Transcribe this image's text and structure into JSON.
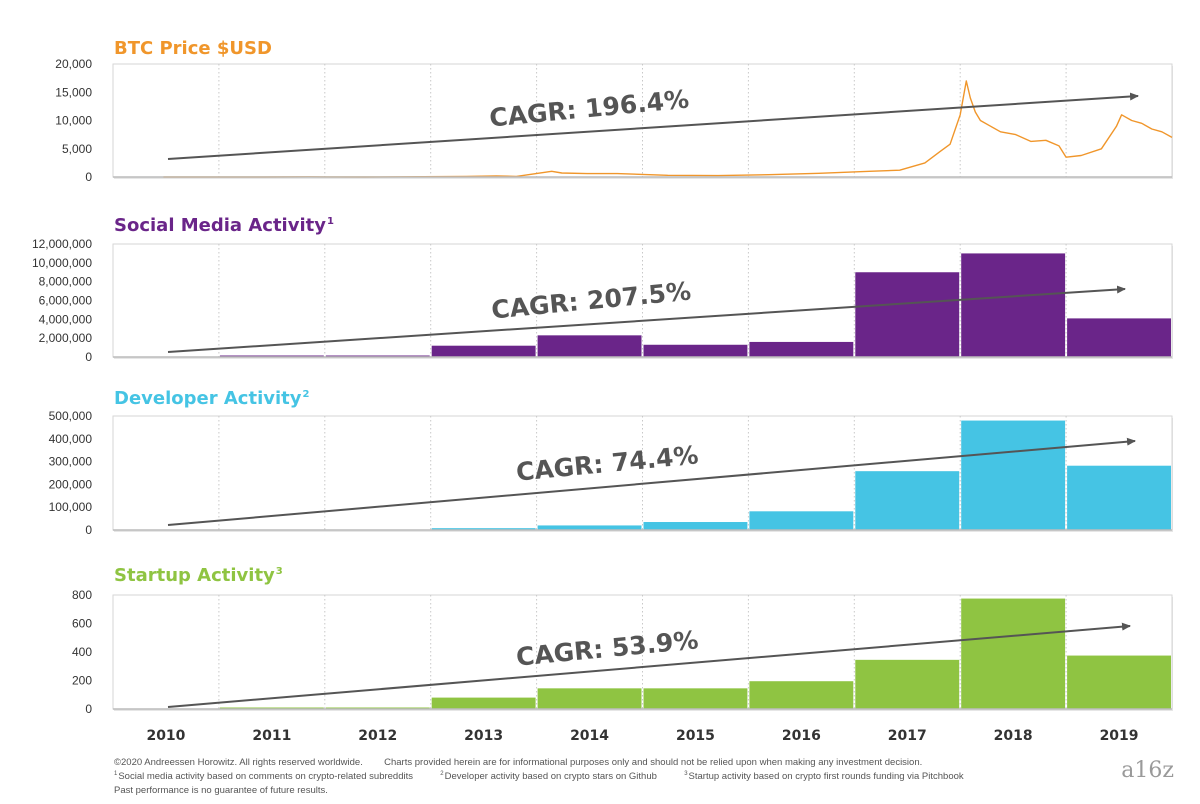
{
  "footer": {
    "copyright": "©2020 Andreessen Horowitz. All rights reserved worldwide.",
    "disclaimer": "Charts provided herein are for informational purposes only and should not be relied upon when making any investment decision.",
    "fn1_mark": "1",
    "fn1": "Social media activity based on comments on crypto-related subreddits",
    "fn2_mark": "2",
    "fn2": "Developer activity based on crypto stars on Github",
    "fn3_mark": "3",
    "fn3": "Startup activity based on crypto first rounds funding via Pitchbook",
    "past": "Past performance is no guarantee of future results."
  },
  "logo": "a16z",
  "chart_data": [
    {
      "type": "line",
      "title": "BTC Price $USD",
      "color": "#f0962b",
      "ylim": [
        0,
        20000
      ],
      "yticks": [
        0,
        5000,
        10000,
        15000,
        20000
      ],
      "ytick_labels": [
        "0",
        "5,000",
        "10,000",
        "15,000",
        "20,000"
      ],
      "x": [
        2010.0,
        2010.5,
        2011.0,
        2011.45,
        2011.6,
        2012.0,
        2013.0,
        2013.3,
        2013.5,
        2013.85,
        2013.95,
        2014.2,
        2014.5,
        2015.0,
        2015.5,
        2016.0,
        2016.5,
        2017.0,
        2017.3,
        2017.55,
        2017.7,
        2017.8,
        2017.9,
        2017.96,
        2018.0,
        2018.05,
        2018.1,
        2018.2,
        2018.3,
        2018.45,
        2018.6,
        2018.75,
        2018.88,
        2018.95,
        2019.1,
        2019.3,
        2019.45,
        2019.5,
        2019.6,
        2019.7,
        2019.8,
        2019.9,
        2020.0
      ],
      "y": [
        0,
        0,
        0,
        30,
        10,
        5,
        100,
        200,
        100,
        1000,
        700,
        600,
        600,
        300,
        250,
        400,
        650,
        1000,
        1200,
        2500,
        4500,
        5800,
        11000,
        17000,
        14000,
        11500,
        10000,
        9000,
        8000,
        7500,
        6300,
        6500,
        5500,
        3500,
        3800,
        5000,
        9000,
        11000,
        10000,
        9500,
        8500,
        8000,
        7000
      ],
      "cagr": "CAGR: 196.4%"
    },
    {
      "type": "bar",
      "title": "Social Media Activity",
      "title_sup": "1",
      "color": "#6a2589",
      "categories": [
        "2010",
        "2011",
        "2012",
        "2013",
        "2014",
        "2015",
        "2016",
        "2017",
        "2018",
        "2019"
      ],
      "values": [
        0,
        100000,
        100000,
        1200000,
        2300000,
        1300000,
        1600000,
        9000000,
        11000000,
        4100000
      ],
      "ylim": [
        0,
        12000000
      ],
      "yticks": [
        0,
        2000000,
        4000000,
        6000000,
        8000000,
        10000000,
        12000000
      ],
      "ytick_labels": [
        "0",
        "2,000,000",
        "4,000,000",
        "6,000,000",
        "8,000,000",
        "10,000,000",
        "12,000,000"
      ],
      "cagr": "CAGR: 207.5%"
    },
    {
      "type": "bar",
      "title": "Developer Activity",
      "title_sup": "2",
      "color": "#45c4e4",
      "categories": [
        "2010",
        "2011",
        "2012",
        "2013",
        "2014",
        "2015",
        "2016",
        "2017",
        "2018",
        "2019"
      ],
      "values": [
        0,
        0,
        0,
        8000,
        20000,
        35000,
        82000,
        258000,
        480000,
        282000
      ],
      "ylim": [
        0,
        500000
      ],
      "yticks": [
        0,
        100000,
        200000,
        300000,
        400000,
        500000
      ],
      "ytick_labels": [
        "0",
        "100,000",
        "200,000",
        "300,000",
        "400,000",
        "500,000"
      ],
      "cagr": "CAGR: 74.4%"
    },
    {
      "type": "bar",
      "title": "Startup Activity",
      "title_sup": "3",
      "color": "#8fc442",
      "categories": [
        "2010",
        "2011",
        "2012",
        "2013",
        "2014",
        "2015",
        "2016",
        "2017",
        "2018",
        "2019"
      ],
      "values": [
        0,
        10,
        10,
        80,
        145,
        145,
        195,
        345,
        775,
        375
      ],
      "ylim": [
        0,
        800
      ],
      "yticks": [
        0,
        200,
        400,
        600,
        800
      ],
      "ytick_labels": [
        "0",
        "200",
        "400",
        "600",
        "800"
      ],
      "cagr": "CAGR: 53.9%"
    }
  ],
  "x_axis_labels": [
    "2010",
    "2011",
    "2012",
    "2013",
    "2014",
    "2015",
    "2016",
    "2017",
    "2018",
    "2019"
  ]
}
